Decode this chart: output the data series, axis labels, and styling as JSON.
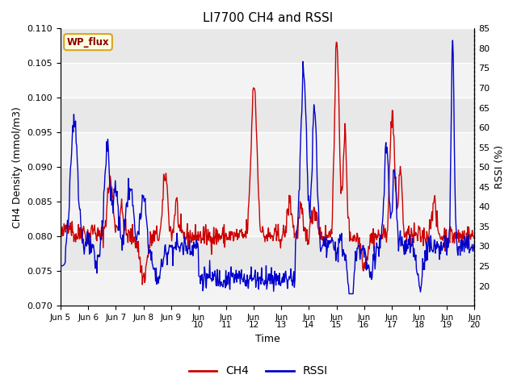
{
  "title": "LI7700 CH4 and RSSI",
  "xlabel": "Time",
  "ylabel_left": "CH4 Density (mmol/m3)",
  "ylabel_right": "RSSI (%)",
  "site_label": "WP_flux",
  "ylim_left": [
    0.07,
    0.11
  ],
  "ylim_right": [
    15,
    85
  ],
  "yticks_left": [
    0.07,
    0.075,
    0.08,
    0.085,
    0.09,
    0.095,
    0.1,
    0.105,
    0.11
  ],
  "yticks_right": [
    20,
    25,
    30,
    35,
    40,
    45,
    50,
    55,
    60,
    65,
    70,
    75,
    80,
    85
  ],
  "xtick_labels": [
    "Jun 5",
    "Jun 6",
    "Jun 7",
    "Jun 8",
    "Jun 9",
    "Jun\n10",
    "Jun\n11",
    "Jun\n12",
    "Jun\n13",
    "Jun\n14",
    "Jun\n15",
    "Jun\n16",
    "Jun\n17",
    "Jun\n18",
    "Jun\n19",
    "Jun\n20"
  ],
  "ch4_color": "#cc0000",
  "rssi_color": "#0000cc",
  "bg_color": "#e8e8e8",
  "grid_color": "#ffffff",
  "line_width": 1.0,
  "legend_ch4": "CH4",
  "legend_rssi": "RSSI",
  "fig_width": 6.4,
  "fig_height": 4.8,
  "dpi": 100
}
